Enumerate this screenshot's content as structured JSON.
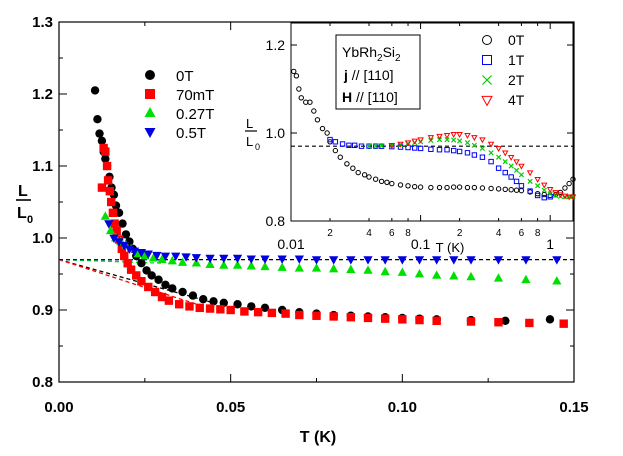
{
  "chart_data": [
    {
      "type": "scatter",
      "title": "",
      "xlabel": "T (K)",
      "ylabel_num": "L",
      "ylabel_den": "L",
      "ylabel_sub": "0",
      "xlim": [
        0.0,
        0.15
      ],
      "ylim": [
        0.8,
        1.3
      ],
      "xticks": [
        {
          "value": 0.0,
          "label": "0.00"
        },
        {
          "value": 0.05,
          "label": "0.05"
        },
        {
          "value": 0.1,
          "label": "0.10"
        },
        {
          "value": 0.15,
          "label": "0.15"
        }
      ],
      "yticks": [
        {
          "value": 0.8,
          "label": "0.8"
        },
        {
          "value": 0.9,
          "label": "0.9"
        },
        {
          "value": 1.0,
          "label": "1.0"
        },
        {
          "value": 1.1,
          "label": "1.1"
        },
        {
          "value": 1.2,
          "label": "1.2"
        },
        {
          "value": 1.3,
          "label": "1.3"
        }
      ],
      "reference_line_y": 0.97,
      "series": [
        {
          "name": "0T",
          "color": "#000000",
          "marker": "circle",
          "x": [
            0.0105,
            0.0112,
            0.0118,
            0.0125,
            0.013,
            0.0135,
            0.014,
            0.0147,
            0.0153,
            0.016,
            0.0166,
            0.0175,
            0.0185,
            0.0195,
            0.0205,
            0.0215,
            0.0225,
            0.024,
            0.0255,
            0.027,
            0.029,
            0.031,
            0.033,
            0.036,
            0.039,
            0.042,
            0.045,
            0.048,
            0.052,
            0.056,
            0.06,
            0.065,
            0.07,
            0.075,
            0.08,
            0.085,
            0.09,
            0.095,
            0.1,
            0.105,
            0.11,
            0.12,
            0.13,
            0.143
          ],
          "y": [
            1.205,
            1.165,
            1.145,
            1.135,
            1.12,
            1.11,
            1.1,
            1.085,
            1.07,
            1.06,
            1.045,
            1.035,
            1.02,
            1.005,
            0.995,
            0.985,
            0.975,
            0.965,
            0.955,
            0.948,
            0.942,
            0.935,
            0.93,
            0.925,
            0.92,
            0.915,
            0.912,
            0.91,
            0.908,
            0.905,
            0.903,
            0.9,
            0.897,
            0.895,
            0.893,
            0.892,
            0.891,
            0.89,
            0.889,
            0.888,
            0.887,
            0.886,
            0.885,
            0.887
          ]
        },
        {
          "name": "70mT",
          "color": "#ff0000",
          "marker": "square",
          "x": [
            0.0125,
            0.013,
            0.0135,
            0.014,
            0.0143,
            0.0148,
            0.0152,
            0.0157,
            0.0162,
            0.0168,
            0.0175,
            0.0183,
            0.019,
            0.02,
            0.021,
            0.0225,
            0.024,
            0.026,
            0.028,
            0.03,
            0.032,
            0.035,
            0.038,
            0.041,
            0.044,
            0.047,
            0.05,
            0.054,
            0.058,
            0.062,
            0.066,
            0.07,
            0.075,
            0.08,
            0.085,
            0.09,
            0.095,
            0.1,
            0.105,
            0.11,
            0.12,
            0.128,
            0.137,
            0.147
          ],
          "y": [
            1.07,
            1.125,
            1.12,
            1.1,
            1.08,
            1.065,
            1.05,
            1.035,
            1.02,
            1.01,
            0.998,
            0.985,
            0.975,
            0.965,
            0.956,
            0.948,
            0.94,
            0.932,
            0.925,
            0.918,
            0.913,
            0.908,
            0.905,
            0.903,
            0.902,
            0.901,
            0.9,
            0.898,
            0.897,
            0.896,
            0.895,
            0.893,
            0.892,
            0.891,
            0.89,
            0.889,
            0.888,
            0.887,
            0.886,
            0.885,
            0.884,
            0.883,
            0.882,
            0.881
          ]
        },
        {
          "name": "0.27T",
          "color": "#00e000",
          "marker": "triangle-up",
          "x": [
            0.0135,
            0.015,
            0.0165,
            0.018,
            0.0195,
            0.021,
            0.023,
            0.025,
            0.0275,
            0.03,
            0.033,
            0.036,
            0.04,
            0.044,
            0.048,
            0.052,
            0.056,
            0.06,
            0.065,
            0.07,
            0.075,
            0.08,
            0.085,
            0.09,
            0.095,
            0.1,
            0.105,
            0.11,
            0.115,
            0.12,
            0.128,
            0.136,
            0.145
          ],
          "y": [
            1.03,
            1.01,
            1.0,
            0.995,
            0.99,
            0.985,
            0.978,
            0.975,
            0.972,
            0.97,
            0.968,
            0.966,
            0.965,
            0.963,
            0.962,
            0.962,
            0.961,
            0.96,
            0.959,
            0.958,
            0.958,
            0.957,
            0.956,
            0.955,
            0.953,
            0.952,
            0.95,
            0.948,
            0.947,
            0.946,
            0.944,
            0.942,
            0.94
          ]
        },
        {
          "name": "0.5T",
          "color": "#0000e0",
          "marker": "triangle-down",
          "x": [
            0.0145,
            0.016,
            0.0175,
            0.019,
            0.0205,
            0.022,
            0.024,
            0.026,
            0.0285,
            0.031,
            0.034,
            0.037,
            0.04,
            0.044,
            0.048,
            0.052,
            0.056,
            0.06,
            0.065,
            0.07,
            0.075,
            0.08,
            0.085,
            0.09,
            0.095,
            0.1,
            0.105,
            0.11,
            0.115,
            0.12,
            0.128,
            0.136,
            0.145
          ],
          "y": [
            1.02,
            1.0,
            0.995,
            0.99,
            0.985,
            0.982,
            0.98,
            0.978,
            0.976,
            0.975,
            0.975,
            0.974,
            0.973,
            0.972,
            0.972,
            0.972,
            0.971,
            0.971,
            0.971,
            0.971,
            0.97,
            0.97,
            0.97,
            0.97,
            0.97,
            0.97,
            0.97,
            0.97,
            0.97,
            0.97,
            0.97,
            0.97,
            0.97
          ]
        }
      ],
      "fit_lines": [
        {
          "color": "#000000",
          "x1": 0.0,
          "y1": 0.97,
          "x2": 0.045,
          "y2": 0.91
        },
        {
          "color": "#ff0000",
          "x1": 0.0,
          "y1": 0.97,
          "x2": 0.042,
          "y2": 0.905
        },
        {
          "color": "#00e000",
          "x1": 0.0,
          "y1": 0.97,
          "x2": 0.03,
          "y2": 0.965
        },
        {
          "color": "#0000e0",
          "x1": 0.0,
          "y1": 0.97,
          "x2": 0.03,
          "y2": 0.97
        }
      ]
    },
    {
      "type": "scatter",
      "role": "inset",
      "x_scale": "log",
      "xlabel": "T (K)",
      "ylabel_num": "L",
      "ylabel_den": "L",
      "ylabel_sub": "0",
      "xlim": [
        0.01,
        1.5
      ],
      "ylim": [
        0.8,
        1.25
      ],
      "xticks_major": [
        {
          "value": 0.01,
          "label": "0.01"
        },
        {
          "value": 0.1,
          "label": "0.1"
        },
        {
          "value": 1,
          "label": "1"
        }
      ],
      "xticks_minor": [
        {
          "value": 0.02,
          "label": "2"
        },
        {
          "value": 0.04,
          "label": "4"
        },
        {
          "value": 0.06,
          "label": "6"
        },
        {
          "value": 0.08,
          "label": "8"
        },
        {
          "value": 0.2,
          "label": "2"
        },
        {
          "value": 0.4,
          "label": "4"
        },
        {
          "value": 0.6,
          "label": "6"
        },
        {
          "value": 0.8,
          "label": "8"
        }
      ],
      "yticks": [
        {
          "value": 0.8,
          "label": "0.8"
        },
        {
          "value": 1.0,
          "label": "1.0"
        },
        {
          "value": 1.2,
          "label": "1.2"
        }
      ],
      "reference_line_y": 0.97,
      "annotation": {
        "line1_main": "YbRh",
        "line1_sub1": "2",
        "line1_mid": "Si",
        "line1_sub2": "2",
        "line2_bold": "j",
        "line2_rest": " // [110]",
        "line3_bold": "H",
        "line3_rest": " // [110]"
      },
      "series": [
        {
          "name": "0T",
          "color": "#000000",
          "marker": "open-circle",
          "x": [
            0.0105,
            0.011,
            0.0115,
            0.012,
            0.013,
            0.014,
            0.015,
            0.016,
            0.0175,
            0.019,
            0.02,
            0.022,
            0.024,
            0.027,
            0.03,
            0.033,
            0.037,
            0.04,
            0.045,
            0.05,
            0.055,
            0.06,
            0.07,
            0.08,
            0.09,
            0.1,
            0.12,
            0.14,
            0.16,
            0.18,
            0.2,
            0.23,
            0.26,
            0.3,
            0.35,
            0.4,
            0.45,
            0.5,
            0.55,
            0.6,
            0.7,
            0.8,
            0.9,
            1.0,
            1.1,
            1.2,
            1.3,
            1.4,
            1.5
          ],
          "y": [
            1.14,
            1.13,
            1.1,
            1.08,
            1.07,
            1.07,
            1.05,
            1.03,
            1.01,
            1.0,
            0.98,
            0.96,
            0.945,
            0.93,
            0.92,
            0.91,
            0.905,
            0.9,
            0.895,
            0.89,
            0.888,
            0.885,
            0.882,
            0.88,
            0.878,
            0.877,
            0.876,
            0.876,
            0.876,
            0.877,
            0.877,
            0.876,
            0.876,
            0.875,
            0.874,
            0.873,
            0.872,
            0.871,
            0.87,
            0.869,
            0.866,
            0.862,
            0.86,
            0.858,
            0.86,
            0.865,
            0.875,
            0.885,
            0.895
          ]
        },
        {
          "name": "1T",
          "color": "#0000ff",
          "marker": "open-square",
          "x": [
            0.02,
            0.022,
            0.025,
            0.028,
            0.031,
            0.035,
            0.04,
            0.045,
            0.05,
            0.06,
            0.07,
            0.08,
            0.09,
            0.1,
            0.12,
            0.14,
            0.16,
            0.18,
            0.2,
            0.23,
            0.26,
            0.3,
            0.35,
            0.4,
            0.45,
            0.5,
            0.55,
            0.6,
            0.7,
            0.8,
            0.9,
            1.0
          ],
          "y": [
            0.985,
            0.98,
            0.975,
            0.972,
            0.972,
            0.97,
            0.97,
            0.97,
            0.97,
            0.969,
            0.968,
            0.967,
            0.966,
            0.965,
            0.963,
            0.962,
            0.962,
            0.96,
            0.958,
            0.955,
            0.95,
            0.945,
            0.935,
            0.92,
            0.91,
            0.9,
            0.89,
            0.88,
            0.868,
            0.858,
            0.853,
            0.855
          ]
        },
        {
          "name": "2T",
          "color": "#00cc00",
          "marker": "cross",
          "x": [
            0.04,
            0.045,
            0.05,
            0.06,
            0.07,
            0.08,
            0.09,
            0.1,
            0.12,
            0.14,
            0.16,
            0.18,
            0.2,
            0.23,
            0.26,
            0.3,
            0.35,
            0.4,
            0.45,
            0.5,
            0.55,
            0.6,
            0.7,
            0.8,
            0.9,
            1.0,
            1.1,
            1.2,
            1.3,
            1.4,
            1.5
          ],
          "y": [
            0.97,
            0.97,
            0.971,
            0.972,
            0.974,
            0.976,
            0.978,
            0.98,
            0.983,
            0.985,
            0.985,
            0.984,
            0.982,
            0.978,
            0.972,
            0.965,
            0.955,
            0.945,
            0.935,
            0.925,
            0.915,
            0.905,
            0.89,
            0.88,
            0.87,
            0.862,
            0.858,
            0.856,
            0.855,
            0.855,
            0.856
          ]
        },
        {
          "name": "4T",
          "color": "#ff0000",
          "marker": "open-triangle-down",
          "x": [
            0.06,
            0.07,
            0.08,
            0.09,
            0.1,
            0.12,
            0.14,
            0.16,
            0.18,
            0.2,
            0.23,
            0.26,
            0.3,
            0.35,
            0.4,
            0.45,
            0.5,
            0.55,
            0.6,
            0.7,
            0.8,
            0.9,
            1.0,
            1.1,
            1.2,
            1.3,
            1.4,
            1.5
          ],
          "y": [
            0.972,
            0.975,
            0.978,
            0.982,
            0.985,
            0.99,
            0.993,
            0.995,
            0.997,
            0.997,
            0.995,
            0.99,
            0.985,
            0.975,
            0.965,
            0.955,
            0.945,
            0.935,
            0.925,
            0.91,
            0.895,
            0.882,
            0.872,
            0.865,
            0.86,
            0.857,
            0.855,
            0.855
          ]
        }
      ]
    }
  ]
}
